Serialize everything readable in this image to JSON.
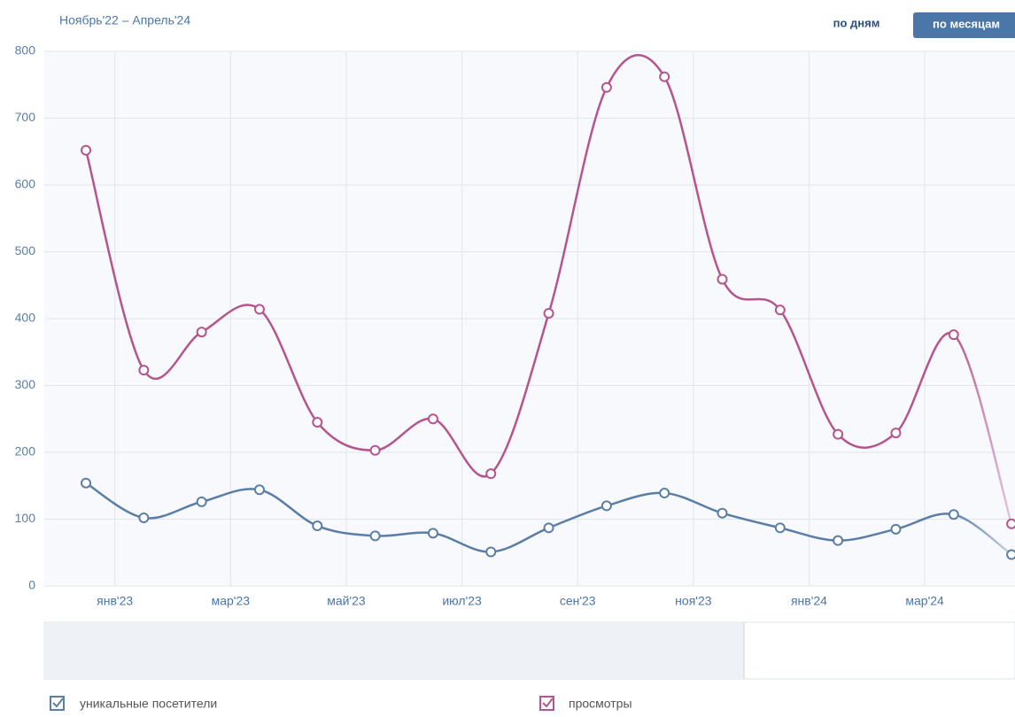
{
  "chart_data": {
    "type": "line",
    "title": "Ноябрь'22 – Апрель'24",
    "buttons": [
      "по дням",
      "по месяцам"
    ],
    "x": [
      0,
      1,
      2,
      3,
      4,
      5,
      6,
      7,
      8,
      9,
      10,
      11,
      12,
      13,
      14,
      15,
      16
    ],
    "xlim": [
      -0.72,
      16.06
    ],
    "xticks": [
      {
        "value": 0.5,
        "label": "янв'23"
      },
      {
        "value": 2.5,
        "label": "мар'23"
      },
      {
        "value": 4.5,
        "label": "май'23"
      },
      {
        "value": 6.5,
        "label": "июл'23"
      },
      {
        "value": 8.5,
        "label": "сен'23"
      },
      {
        "value": 10.5,
        "label": "ноя'23"
      },
      {
        "value": 12.5,
        "label": "янв'24"
      },
      {
        "value": 14.5,
        "label": "мар'24"
      }
    ],
    "ylim": [
      0,
      800
    ],
    "yticks": [
      0,
      100,
      200,
      300,
      400,
      500,
      600,
      700,
      800
    ],
    "grid": true,
    "series": [
      {
        "name": "уникальные посетители",
        "color": "#5b7ea6",
        "values": [
          154,
          102,
          126,
          144,
          90,
          75,
          79,
          51,
          87,
          120,
          139,
          109,
          87,
          68,
          85,
          107,
          47
        ]
      },
      {
        "name": "просмотры",
        "color": "#b5558f",
        "values": [
          652,
          323,
          380,
          414,
          245,
          203,
          250,
          168,
          408,
          746,
          762,
          459,
          413,
          227,
          229,
          376,
          93
        ]
      }
    ]
  }
}
